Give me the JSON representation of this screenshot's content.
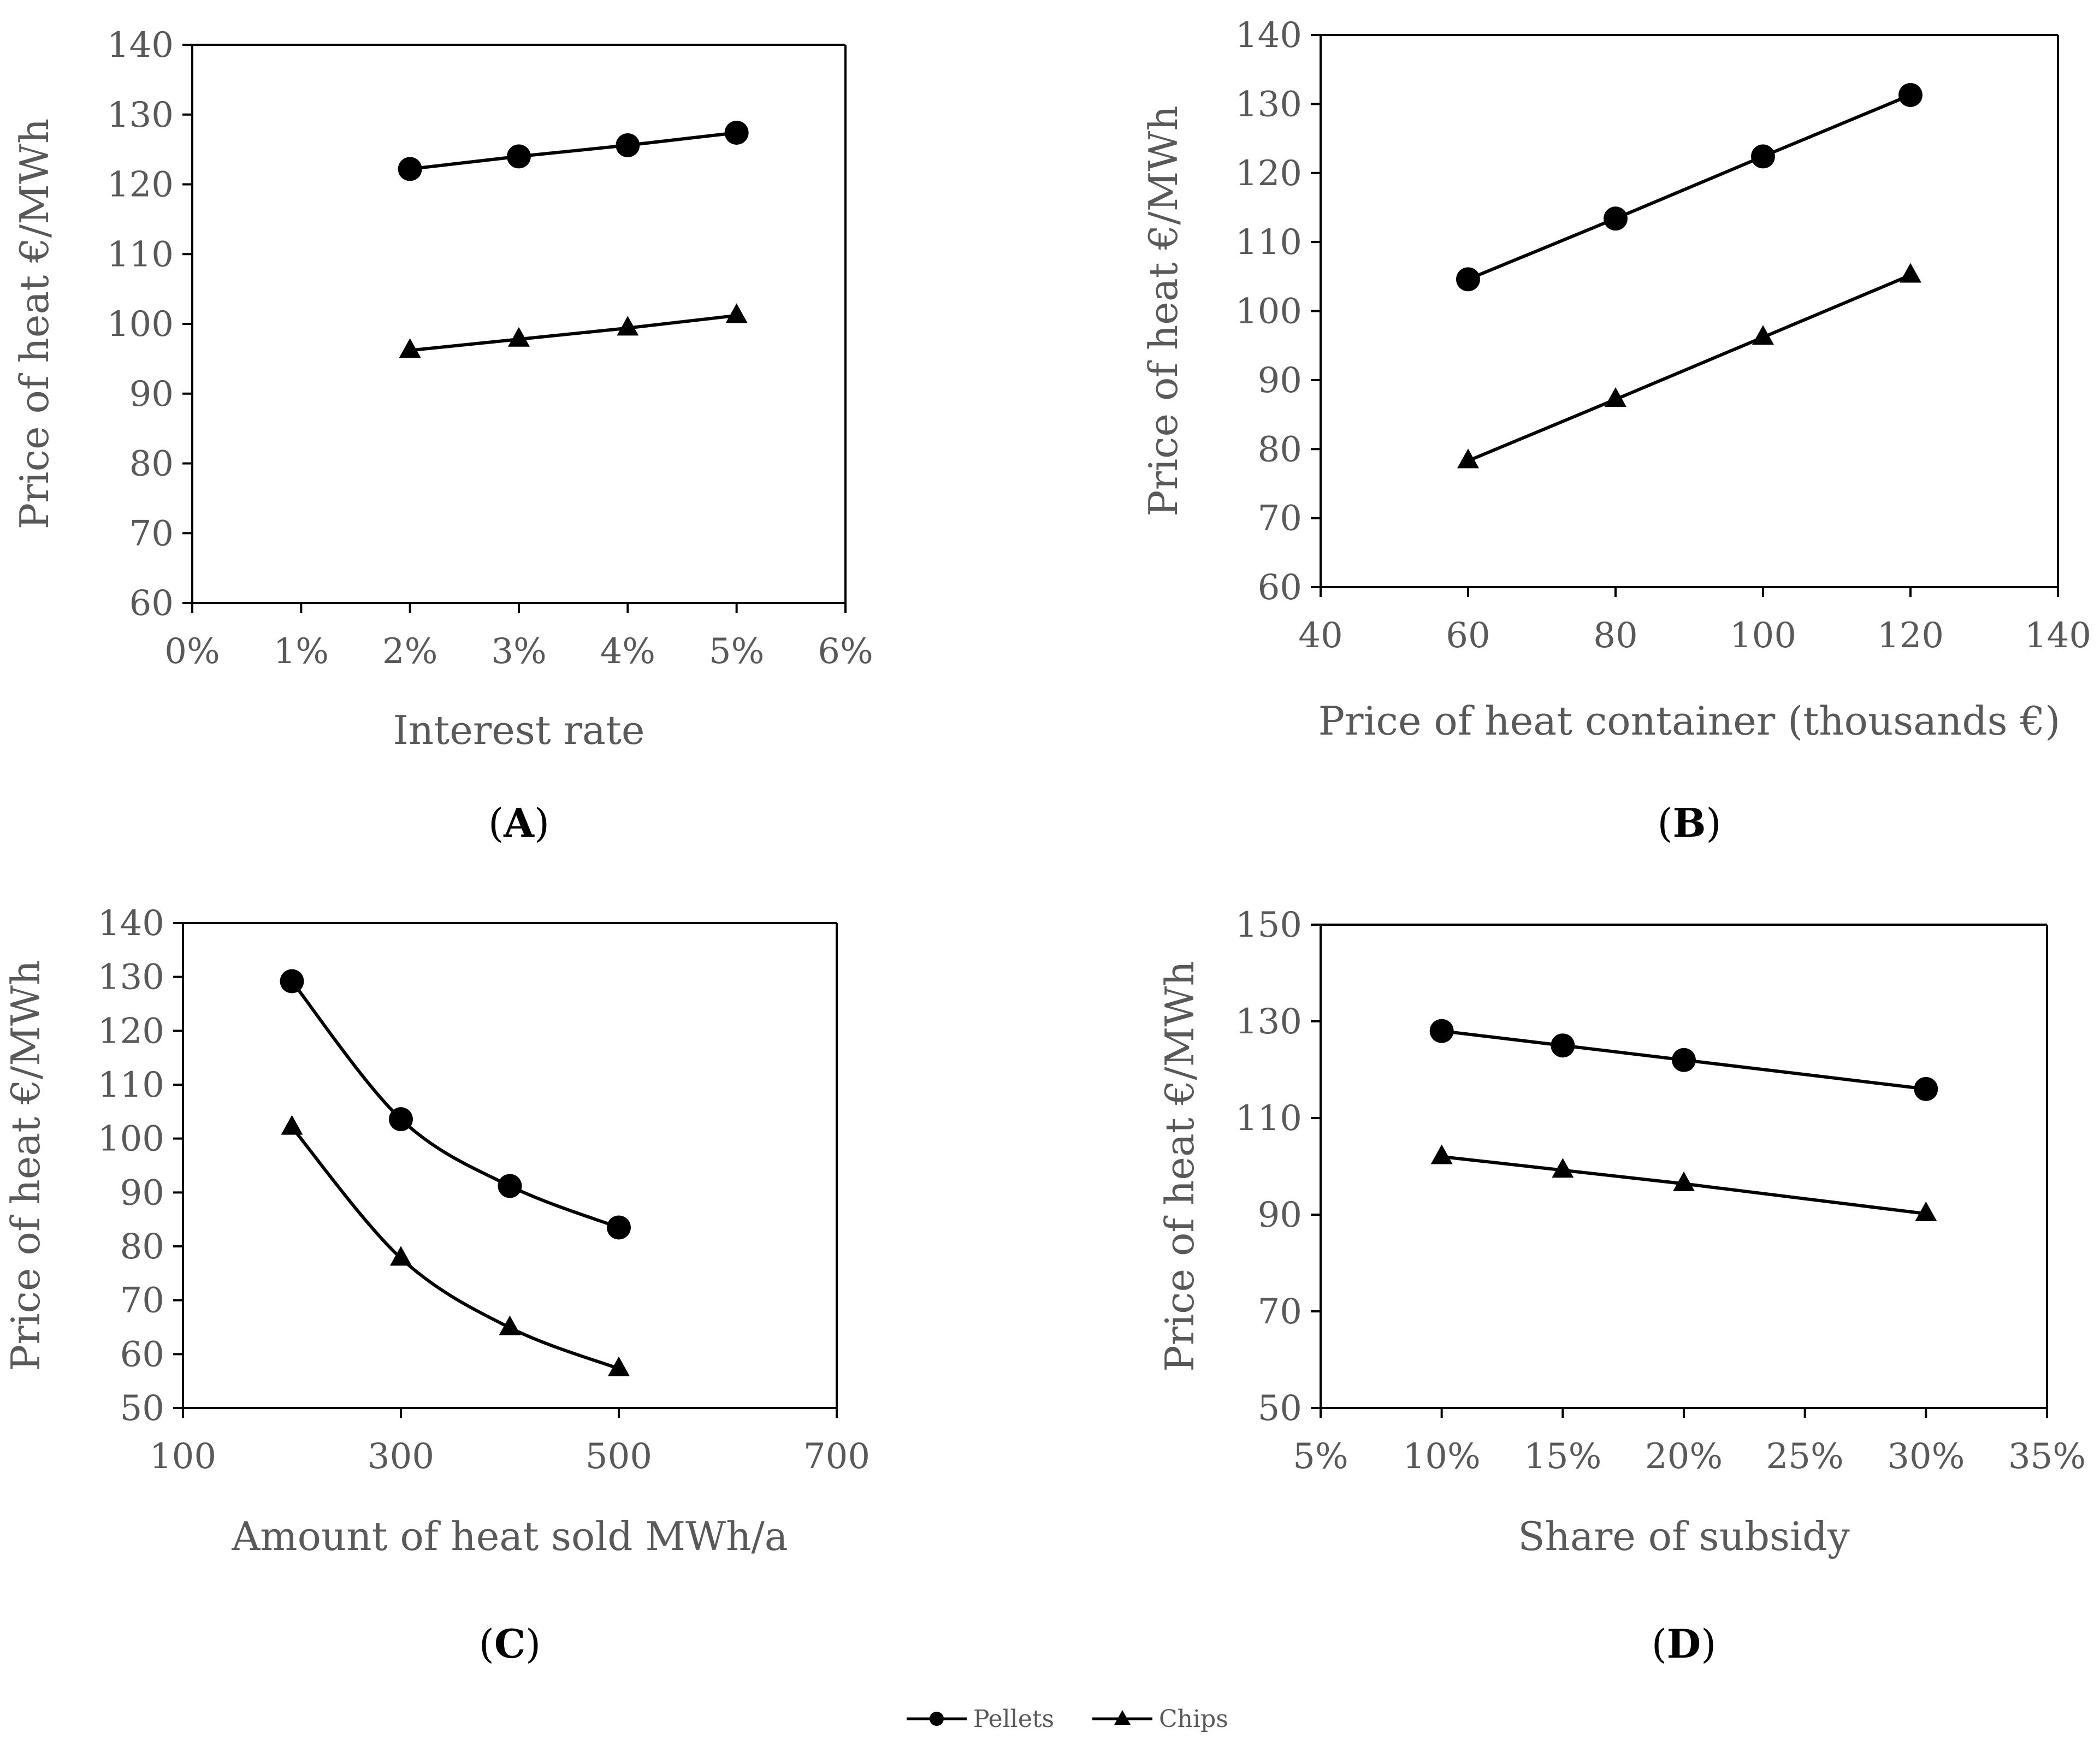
{
  "legend": [
    {
      "name": "Pellets",
      "marker": "circle"
    },
    {
      "name": "Chips",
      "marker": "triangle"
    }
  ],
  "chart_data": [
    {
      "type": "line",
      "panel": "A",
      "title": "",
      "xlabel": "Interest rate",
      "ylabel": "Price of heat €/MWh",
      "xlim": [
        0,
        6
      ],
      "ylim": [
        60,
        140
      ],
      "xticks": [
        0,
        1,
        2,
        3,
        4,
        5,
        6
      ],
      "xtick_labels": [
        "0%",
        "1%",
        "2%",
        "3%",
        "4%",
        "5%",
        "6%"
      ],
      "yticks": [
        60,
        70,
        80,
        90,
        100,
        110,
        120,
        130,
        140
      ],
      "ytick_labels": [
        "60",
        "70",
        "80",
        "90",
        "100",
        "110",
        "120",
        "130",
        "140"
      ],
      "smooth": false,
      "series": [
        {
          "name": "Pellets",
          "marker": "circle",
          "x": [
            2,
            3,
            4,
            5
          ],
          "y": [
            122.2,
            124.0,
            125.6,
            127.4
          ]
        },
        {
          "name": "Chips",
          "marker": "triangle",
          "x": [
            2,
            3,
            4,
            5
          ],
          "y": [
            96.2,
            97.8,
            99.4,
            101.2
          ]
        }
      ]
    },
    {
      "type": "line",
      "panel": "B",
      "title": "",
      "xlabel": "Price of heat container (thousands €)",
      "ylabel": "Price of heat €/MWh",
      "xlim": [
        40,
        140
      ],
      "ylim": [
        60,
        140
      ],
      "xticks": [
        40,
        60,
        80,
        100,
        120,
        140
      ],
      "xtick_labels": [
        "40",
        "60",
        "80",
        "100",
        "120",
        "140"
      ],
      "yticks": [
        60,
        70,
        80,
        90,
        100,
        110,
        120,
        130,
        140
      ],
      "ytick_labels": [
        "60",
        "70",
        "80",
        "90",
        "100",
        "110",
        "120",
        "130",
        "140"
      ],
      "smooth": false,
      "series": [
        {
          "name": "Pellets",
          "marker": "circle",
          "x": [
            60,
            80,
            100,
            120
          ],
          "y": [
            104.6,
            113.4,
            122.4,
            131.3
          ]
        },
        {
          "name": "Chips",
          "marker": "triangle",
          "x": [
            60,
            80,
            100,
            120
          ],
          "y": [
            78.3,
            87.2,
            96.2,
            105.2
          ]
        }
      ]
    },
    {
      "type": "line",
      "panel": "C",
      "title": "",
      "xlabel": "Amount of heat sold MWh/a",
      "ylabel": "Price of heat €/MWh",
      "xlim": [
        100,
        700
      ],
      "ylim": [
        50,
        140
      ],
      "xticks": [
        100,
        300,
        500,
        700
      ],
      "xtick_labels": [
        "100",
        "300",
        "500",
        "700"
      ],
      "yticks": [
        50,
        60,
        70,
        80,
        90,
        100,
        110,
        120,
        130,
        140
      ],
      "ytick_labels": [
        "50",
        "60",
        "70",
        "80",
        "90",
        "100",
        "110",
        "120",
        "130",
        "140"
      ],
      "smooth": true,
      "series": [
        {
          "name": "Pellets",
          "marker": "circle",
          "x": [
            200,
            300,
            400,
            500
          ],
          "y": [
            129.2,
            103.6,
            91.2,
            83.5
          ]
        },
        {
          "name": "Chips",
          "marker": "triangle",
          "x": [
            200,
            300,
            400,
            500
          ],
          "y": [
            102.1,
            77.8,
            64.9,
            57.3
          ]
        }
      ]
    },
    {
      "type": "line",
      "panel": "D",
      "title": "",
      "xlabel": "Share of subsidy",
      "ylabel": "Price of heat €/MWh",
      "xlim": [
        5,
        35
      ],
      "ylim": [
        50,
        150
      ],
      "xticks": [
        5,
        10,
        15,
        20,
        25,
        30,
        35
      ],
      "xtick_labels": [
        "5%",
        "10%",
        "15%",
        "20%",
        "25%",
        "30%",
        "35%"
      ],
      "yticks": [
        50,
        70,
        90,
        110,
        130,
        150
      ],
      "ytick_labels": [
        "50",
        "70",
        "90",
        "110",
        "130",
        "150"
      ],
      "smooth": false,
      "series": [
        {
          "name": "Pellets",
          "marker": "circle",
          "x": [
            10,
            15,
            20,
            30
          ],
          "y": [
            128.0,
            125.0,
            122.0,
            116.0
          ]
        },
        {
          "name": "Chips",
          "marker": "triangle",
          "x": [
            10,
            15,
            20,
            30
          ],
          "y": [
            102.0,
            99.2,
            96.4,
            90.2
          ]
        }
      ]
    }
  ],
  "panel_labels": [
    "A",
    "B",
    "C",
    "D"
  ]
}
